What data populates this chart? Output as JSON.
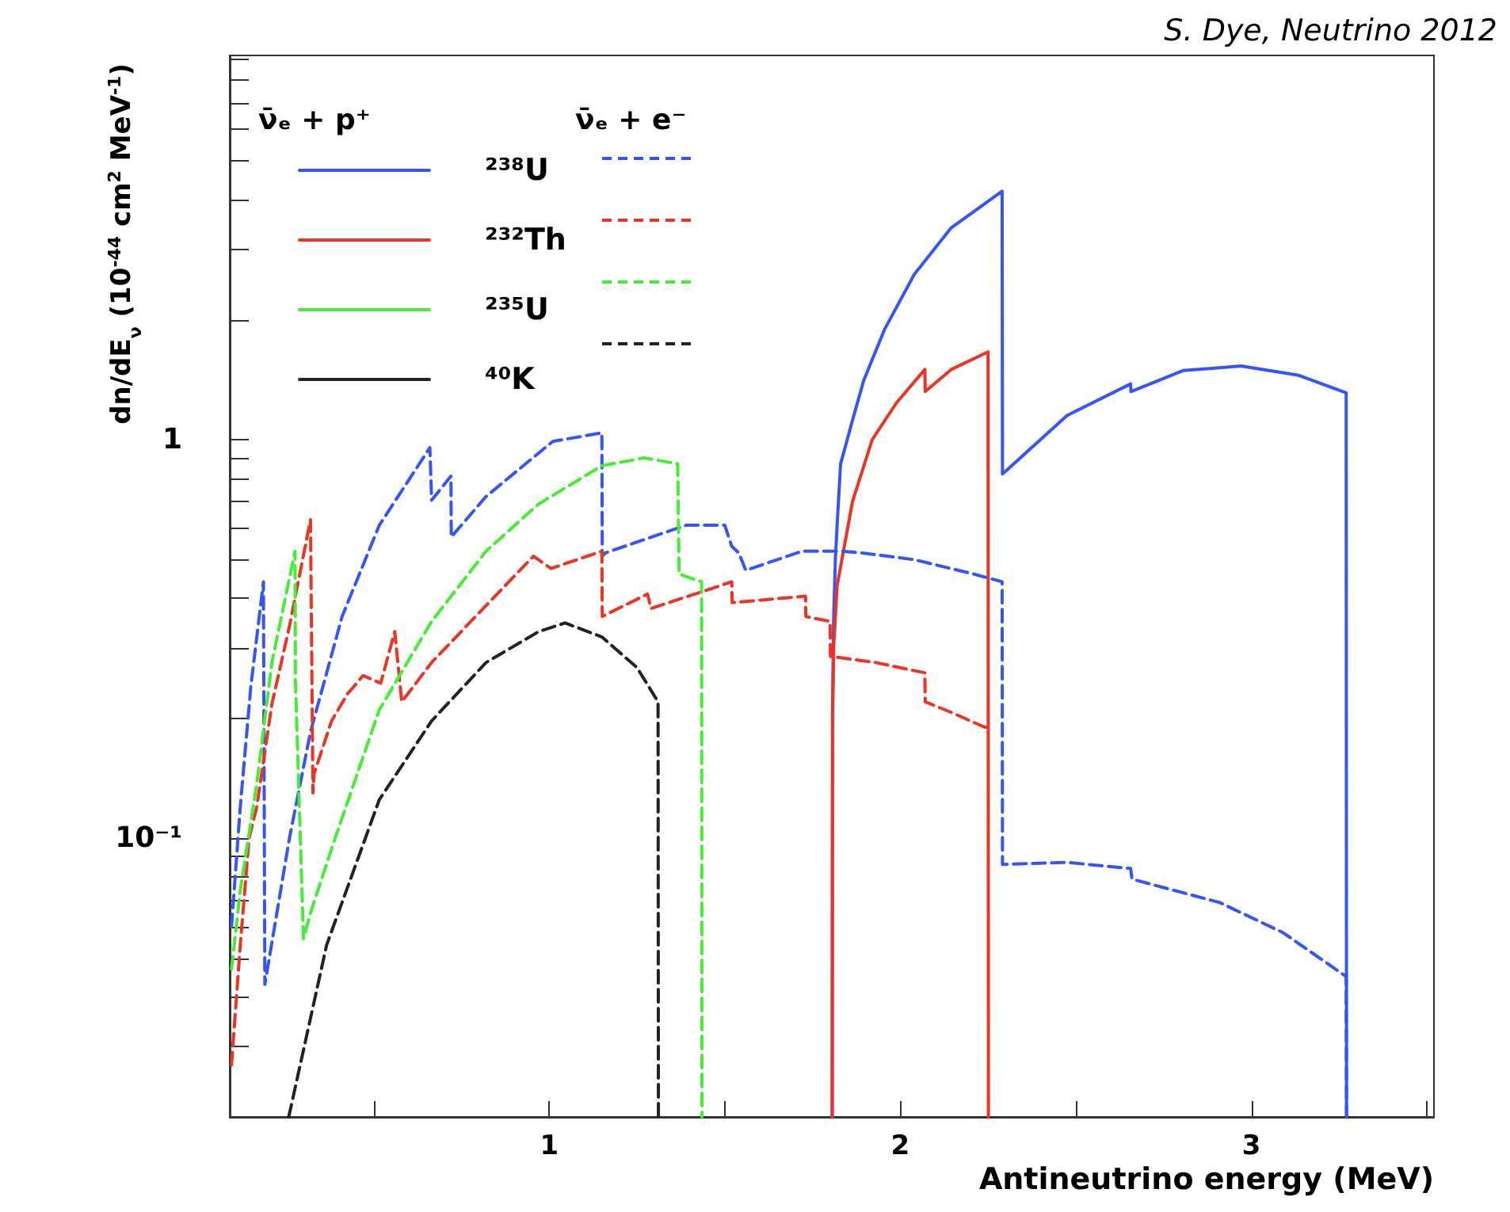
{
  "chart_data": {
    "type": "line",
    "xlabel": "Antineutrino energy (MeV)",
    "ylabel": "dn/dE$_{ν}$ (10$^{-44}$ cm$^{2}$ MeV$^{-1}$)",
    "annotations": [
      "S. Dye, Neutrino 2012",
      "ν̄ₑ + p⁺",
      "ν̄ₑ + e⁻"
    ],
    "xlim": [
      0.09,
      3.52
    ],
    "ylim": [
      0.02,
      9.2
    ],
    "log": "y",
    "grid": false,
    "legend": "top left",
    "marker": "none",
    "xticks": [
      {
        "value": 0.5,
        "label": null
      },
      1,
      {
        "value": 1.5,
        "label": null
      },
      2,
      {
        "value": 2.5,
        "label": null
      },
      3,
      {
        "value": 3.5,
        "label": null
      }
    ],
    "yticks": [
      {
        "value": 0.02,
        "label": null
      },
      {
        "value": 0.03,
        "label": null
      },
      {
        "value": 0.04,
        "label": null
      },
      {
        "value": 0.05,
        "label": null
      },
      {
        "value": 0.06,
        "label": null
      },
      {
        "value": 0.07,
        "label": null
      },
      {
        "value": 0.08,
        "label": null
      },
      {
        "value": 0.09,
        "label": null
      },
      {
        "value": 0.1,
        "label": "10⁻¹"
      },
      {
        "value": 0.2,
        "label": null
      },
      {
        "value": 0.3,
        "label": null
      },
      {
        "value": 0.4,
        "label": null
      },
      {
        "value": 0.5,
        "label": null
      },
      {
        "value": 0.6,
        "label": null
      },
      {
        "value": 0.7,
        "label": null
      },
      {
        "value": 0.8,
        "label": null
      },
      {
        "value": 0.9,
        "label": null
      },
      1,
      {
        "value": 2,
        "label": null
      },
      {
        "value": 3,
        "label": null
      },
      {
        "value": 4,
        "label": null
      },
      {
        "value": 5,
        "label": null
      },
      {
        "value": 6,
        "label": null
      },
      {
        "value": 7,
        "label": null
      },
      {
        "value": 8,
        "label": null
      },
      {
        "value": 9,
        "label": null
      }
    ],
    "series": [
      {
        "name": "²³⁸U",
        "color": "#3355ff",
        "line_style": "solid",
        "x": [
          1.806,
          1.807,
          1.81,
          1.815,
          1.82,
          1.83,
          1.864,
          1.896,
          1.955,
          2.04,
          2.145,
          2.29,
          2.291,
          2.475,
          2.656,
          2.657,
          2.805,
          2.97,
          3.135,
          3.27,
          3.271
        ],
        "values": [
          0.02,
          0.2,
          0.35,
          0.5,
          0.61,
          0.87,
          1.12,
          1.41,
          1.89,
          2.6,
          3.4,
          4.2,
          0.82,
          1.15,
          1.38,
          1.32,
          1.49,
          1.53,
          1.45,
          1.31,
          0.02
        ]
      },
      {
        "name": "²³²Th",
        "color": "#ee3322",
        "line_style": "solid",
        "x": [
          1.806,
          1.807,
          1.81,
          1.82,
          1.864,
          1.92,
          1.99,
          2.07,
          2.071,
          2.145,
          2.25,
          2.251
        ],
        "values": [
          0.02,
          0.2,
          0.3,
          0.43,
          0.7,
          1.0,
          1.24,
          1.5,
          1.32,
          1.5,
          1.66,
          0.02
        ]
      },
      {
        "name": "²³⁵U",
        "color": "#44ee33",
        "line_style": "solid"
      },
      {
        "name": "⁴⁰K",
        "color": "#222222",
        "line_style": "solid"
      },
      {
        "color": "#3355ff",
        "line_style": "dashed",
        "x": [
          0.095,
          0.12,
          0.15,
          0.186,
          0.19,
          0.26,
          0.32,
          0.41,
          0.516,
          0.66,
          0.665,
          0.72,
          0.721,
          0.82,
          1.01,
          1.15,
          1.151,
          1.16,
          1.39,
          1.5,
          1.52,
          1.54,
          1.56,
          1.72,
          1.83,
          1.89,
          2.04,
          2.21,
          2.29,
          2.291,
          2.475,
          2.656,
          2.66,
          2.91,
          3.09,
          3.27,
          3.271
        ],
        "values": [
          0.06,
          0.12,
          0.24,
          0.44,
          0.043,
          0.1,
          0.185,
          0.36,
          0.61,
          0.955,
          0.705,
          0.81,
          0.57,
          0.72,
          0.99,
          1.04,
          0.51,
          0.52,
          0.61,
          0.61,
          0.54,
          0.52,
          0.47,
          0.525,
          0.525,
          0.52,
          0.5,
          0.46,
          0.44,
          0.086,
          0.087,
          0.084,
          0.079,
          0.069,
          0.058,
          0.045,
          0.02
        ]
      },
      {
        "color": "#ee3322",
        "line_style": "dashed",
        "x": [
          0.095,
          0.12,
          0.145,
          0.167,
          0.21,
          0.26,
          0.32,
          0.327,
          0.33,
          0.38,
          0.425,
          0.47,
          0.52,
          0.56,
          0.58,
          0.665,
          0.79,
          0.955,
          1.005,
          1.15,
          1.151,
          1.28,
          1.29,
          1.52,
          1.521,
          1.73,
          1.731,
          1.8,
          1.801,
          1.93,
          2.07,
          2.071,
          2.145,
          2.24,
          2.25
        ],
        "values": [
          0.027,
          0.054,
          0.1,
          0.12,
          0.217,
          0.34,
          0.63,
          0.13,
          0.145,
          0.197,
          0.23,
          0.256,
          0.245,
          0.33,
          0.22,
          0.276,
          0.36,
          0.51,
          0.475,
          0.525,
          0.36,
          0.41,
          0.377,
          0.44,
          0.39,
          0.405,
          0.36,
          0.35,
          0.286,
          0.276,
          0.26,
          0.22,
          0.207,
          0.19,
          0.19
        ]
      },
      {
        "color": "#44ee33",
        "line_style": "dashed",
        "x": [
          0.095,
          0.12,
          0.167,
          0.21,
          0.276,
          0.277,
          0.3,
          0.32,
          0.39,
          0.516,
          0.665,
          0.82,
          0.97,
          1.15,
          1.27,
          1.366,
          1.37,
          1.434,
          1.435
        ],
        "values": [
          0.047,
          0.074,
          0.137,
          0.276,
          0.525,
          0.25,
          0.056,
          0.065,
          0.1,
          0.21,
          0.35,
          0.525,
          0.69,
          0.86,
          0.9,
          0.87,
          0.46,
          0.44,
          0.02
        ]
      },
      {
        "color": "#222222",
        "line_style": "dashed",
        "x": [
          0.258,
          0.366,
          0.516,
          0.665,
          0.82,
          0.97,
          1.045,
          1.15,
          1.25,
          1.31,
          1.311
        ],
        "values": [
          0.02,
          0.054,
          0.125,
          0.197,
          0.276,
          0.33,
          0.347,
          0.32,
          0.268,
          0.22,
          0.02
        ]
      }
    ]
  }
}
